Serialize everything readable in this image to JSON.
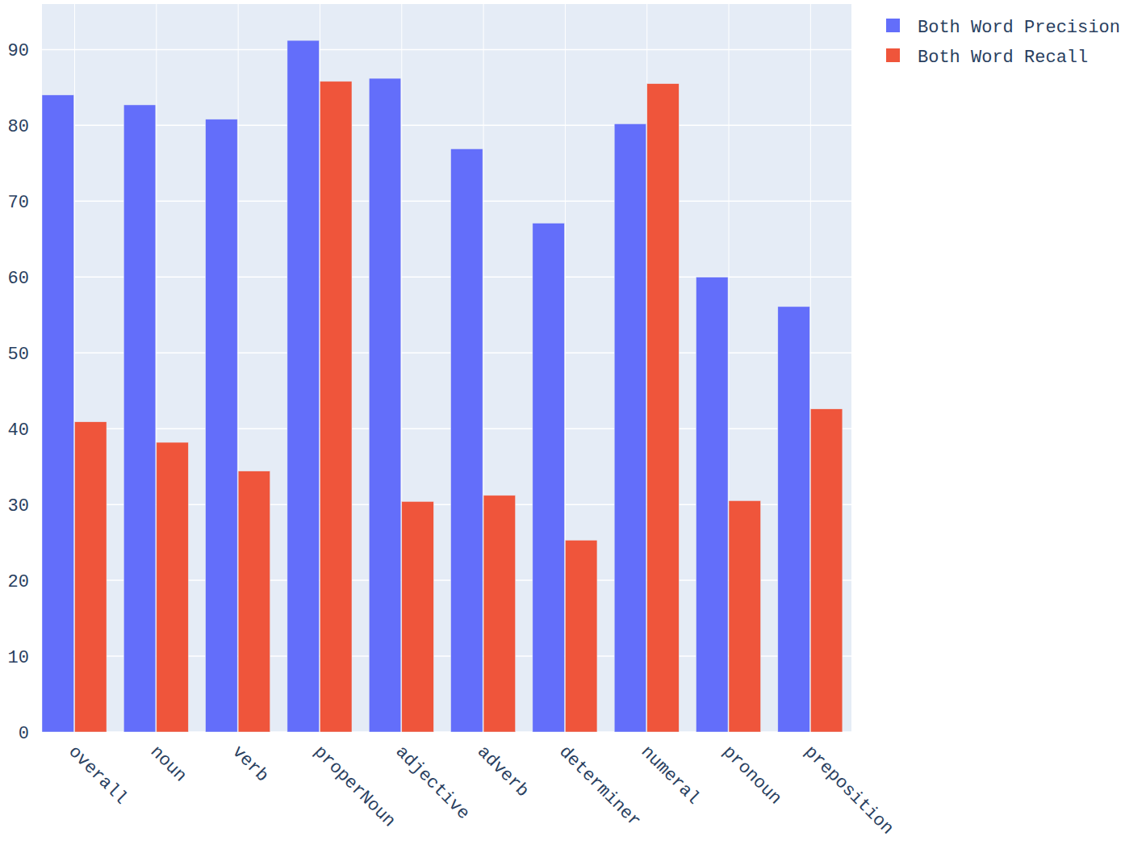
{
  "chart_data": {
    "type": "bar",
    "categories": [
      "overall",
      "noun",
      "verb",
      "properNoun",
      "adjective",
      "adverb",
      "determiner",
      "numeral",
      "pronoun",
      "preposition"
    ],
    "series": [
      {
        "name": "Both Word Precision",
        "color": "#636efa",
        "values": [
          84.0,
          82.7,
          80.8,
          91.2,
          86.2,
          76.9,
          67.1,
          80.2,
          60.0,
          56.1
        ]
      },
      {
        "name": "Both Word Recall",
        "color": "#ef553b",
        "values": [
          40.9,
          38.2,
          34.4,
          85.8,
          30.4,
          31.2,
          25.3,
          85.5,
          30.5,
          42.6
        ]
      }
    ],
    "ylim": [
      0,
      96
    ],
    "yticks": [
      0,
      10,
      20,
      30,
      40,
      50,
      60,
      70,
      80,
      90
    ],
    "grid": true,
    "legend": "top-right"
  }
}
